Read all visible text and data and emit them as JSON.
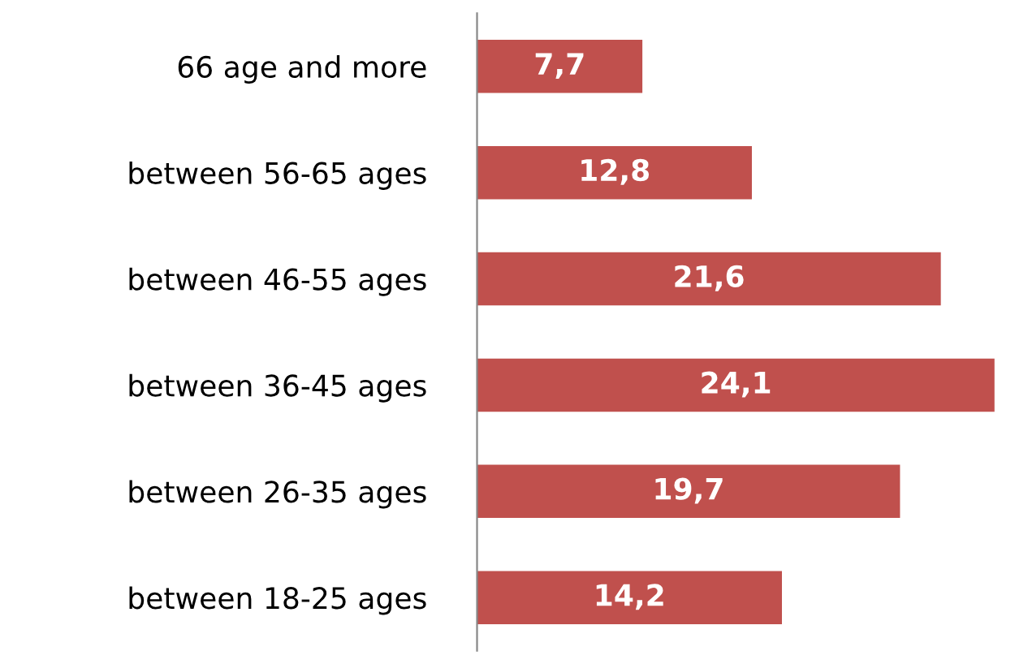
{
  "chart_data": {
    "type": "bar",
    "orientation": "horizontal",
    "categories": [
      "66 age and more",
      "between 56-65 ages",
      "between 46-55 ages",
      "between 36-45 ages",
      "between 26-35 ages",
      "between 18-25 ages"
    ],
    "values": [
      7.7,
      12.8,
      21.6,
      24.1,
      19.7,
      14.2
    ],
    "value_labels": [
      "7,7",
      "12,8",
      "21,6",
      "24,1",
      "19,7",
      "14,2"
    ],
    "color": "#c0504d",
    "tick_labels": "y",
    "grid": false,
    "legend": false
  }
}
